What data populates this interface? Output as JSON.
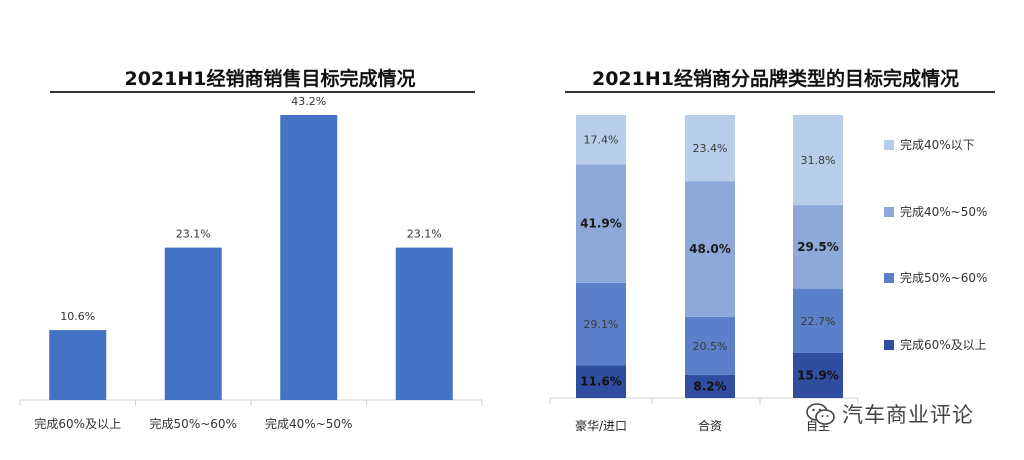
{
  "charts": {
    "left": {
      "title": "2021H1经销商销售目标完成情况"
    },
    "right": {
      "title": "2021H1经销商分品牌类型的目标完成情况"
    }
  },
  "watermark": {
    "text": "汽车商业评论",
    "icon": "wechat-icon"
  },
  "colors": {
    "bar": "#4472c4",
    "stack": [
      "#2f4ea0",
      "#5b7fc8",
      "#8ea8d8",
      "#b8cdea"
    ],
    "label_light": "#3a3a3a",
    "label_dark": "#1a1a1a"
  },
  "chart_data": [
    {
      "type": "bar",
      "title": "2021H1经销商销售目标完成情况",
      "categories": [
        "完成60%及以上",
        "完成50%~60%",
        "完成40%~50%",
        ""
      ],
      "values": [
        10.6,
        23.1,
        43.2,
        23.1
      ],
      "labels": [
        "10.6%",
        "23.1%",
        "43.2%",
        "23.1%"
      ],
      "ylim": [
        0,
        50
      ],
      "grid": false
    },
    {
      "type": "bar",
      "stacked": true,
      "percent": true,
      "title": "2021H1经销商分品牌类型的目标完成情况",
      "categories": [
        "豪华/进口",
        "合资",
        "自主"
      ],
      "series": [
        {
          "name": "完成60%及以上",
          "values": [
            11.6,
            8.2,
            15.9
          ],
          "labels": [
            "11.6%",
            "8.2%",
            "15.9%"
          ],
          "bold": true
        },
        {
          "name": "完成50%~60%",
          "values": [
            29.1,
            20.5,
            22.7
          ],
          "labels": [
            "29.1%",
            "20.5%",
            "22.7%"
          ],
          "bold": false
        },
        {
          "name": "完成40%~50%",
          "values": [
            41.9,
            48.0,
            29.5
          ],
          "labels": [
            "41.9%",
            "48.0%",
            "29.5%"
          ],
          "bold": true
        },
        {
          "name": "完成40%以下",
          "values": [
            17.4,
            23.4,
            31.8
          ],
          "labels": [
            "17.4%",
            "23.4%",
            "31.8%"
          ],
          "bold": false
        }
      ],
      "legend": "right"
    }
  ]
}
